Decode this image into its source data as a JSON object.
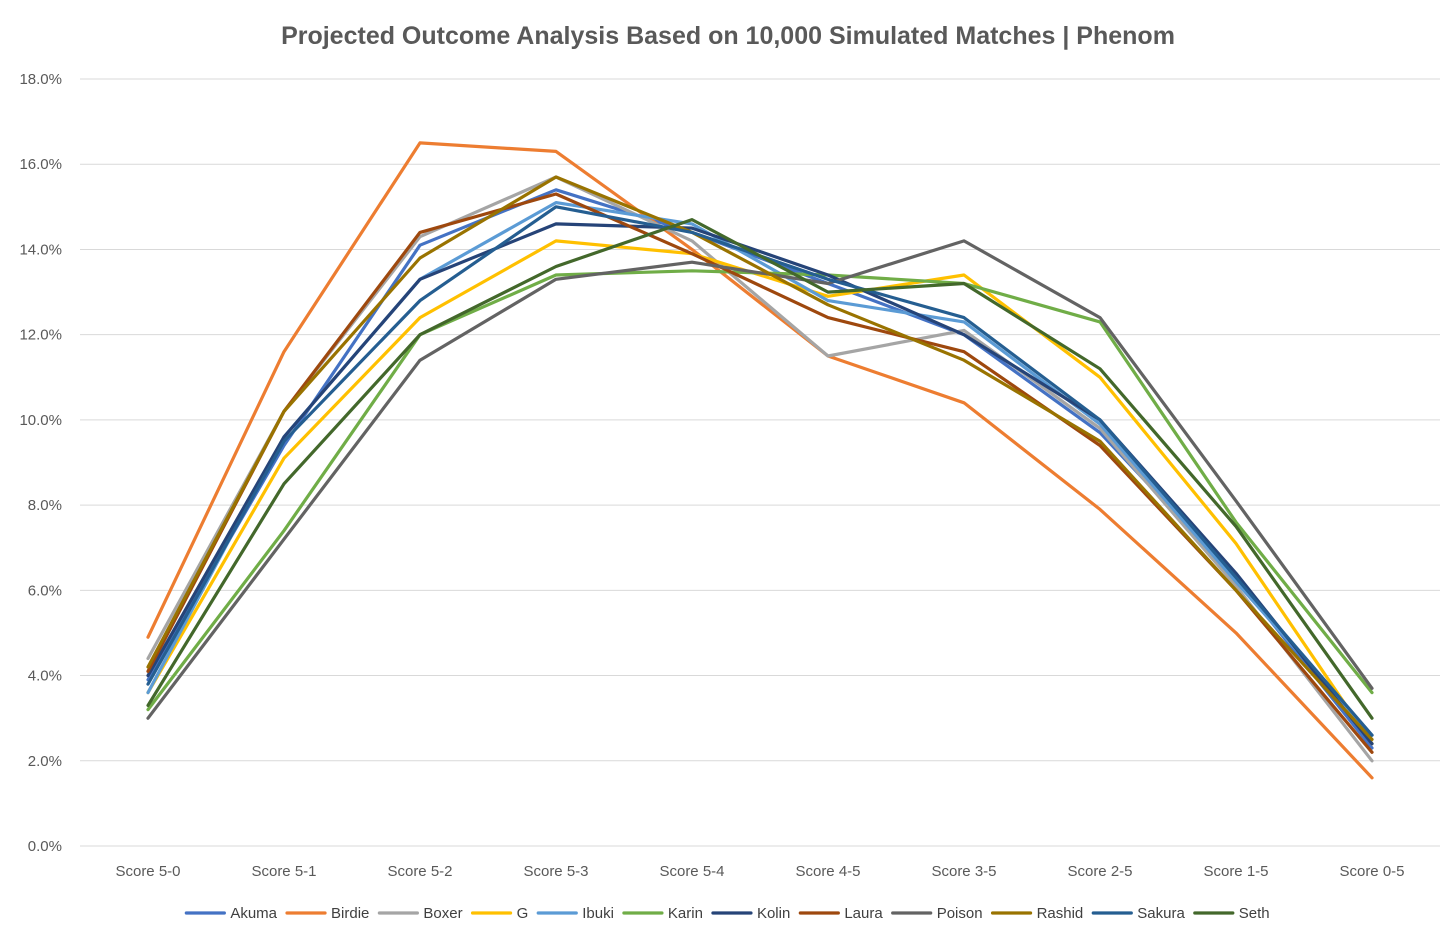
{
  "chart_data": {
    "type": "line",
    "title": "Projected Outcome Analysis Based on 10,000 Simulated Matches | Phenom",
    "xlabel": "",
    "ylabel": "",
    "categories": [
      "Score 5-0",
      "Score 5-1",
      "Score 5-2",
      "Score 5-3",
      "Score 5-4",
      "Score 4-5",
      "Score 3-5",
      "Score 2-5",
      "Score 1-5",
      "Score 0-5"
    ],
    "y_tick_labels": [
      "0.0%",
      "2.0%",
      "4.0%",
      "6.0%",
      "8.0%",
      "10.0%",
      "12.0%",
      "14.0%",
      "16.0%",
      "18.0%"
    ],
    "ylim": [
      0,
      18
    ],
    "grid": true,
    "legend_position": "bottom",
    "series": [
      {
        "name": "Akuma",
        "color": "#4472c4",
        "values": [
          3.9,
          9.4,
          14.1,
          15.4,
          14.4,
          13.2,
          12.0,
          9.7,
          6.3,
          2.3
        ]
      },
      {
        "name": "Birdie",
        "color": "#ed7d31",
        "values": [
          4.9,
          11.6,
          16.5,
          16.3,
          14.0,
          11.5,
          10.4,
          7.9,
          5.0,
          1.6
        ]
      },
      {
        "name": "Boxer",
        "color": "#a5a5a5",
        "values": [
          4.4,
          10.2,
          14.3,
          15.7,
          14.2,
          11.5,
          12.1,
          9.8,
          6.1,
          2.0
        ]
      },
      {
        "name": "G",
        "color": "#ffc000",
        "values": [
          3.6,
          9.1,
          12.4,
          14.2,
          13.9,
          12.9,
          13.4,
          11.0,
          7.1,
          2.4
        ]
      },
      {
        "name": "Ibuki",
        "color": "#5b9bd5",
        "values": [
          3.6,
          9.6,
          13.3,
          15.1,
          14.6,
          12.8,
          12.3,
          9.9,
          6.2,
          2.6
        ]
      },
      {
        "name": "Karin",
        "color": "#70ad47",
        "values": [
          3.2,
          7.4,
          12.0,
          13.4,
          13.5,
          13.4,
          13.2,
          12.3,
          7.6,
          3.6
        ]
      },
      {
        "name": "Kolin",
        "color": "#264478",
        "values": [
          4.0,
          9.6,
          13.3,
          14.6,
          14.5,
          13.4,
          12.0,
          10.0,
          6.4,
          2.4
        ]
      },
      {
        "name": "Laura",
        "color": "#9e480e",
        "values": [
          4.1,
          10.2,
          14.4,
          15.3,
          13.9,
          12.4,
          11.6,
          9.4,
          6.0,
          2.2
        ]
      },
      {
        "name": "Poison",
        "color": "#636363",
        "values": [
          3.0,
          7.2,
          11.4,
          13.3,
          13.7,
          13.2,
          14.2,
          12.4,
          8.1,
          3.7
        ]
      },
      {
        "name": "Rashid",
        "color": "#997300",
        "values": [
          4.2,
          10.2,
          13.8,
          15.7,
          14.4,
          12.7,
          11.4,
          9.5,
          6.0,
          2.5
        ]
      },
      {
        "name": "Sakura",
        "color": "#255e91",
        "values": [
          3.8,
          9.5,
          12.8,
          15.0,
          14.4,
          13.3,
          12.4,
          10.0,
          6.3,
          2.6
        ]
      },
      {
        "name": "Seth",
        "color": "#43682b",
        "values": [
          3.3,
          8.5,
          12.0,
          13.6,
          14.7,
          13.0,
          13.2,
          11.2,
          7.5,
          3.0
        ]
      }
    ]
  }
}
